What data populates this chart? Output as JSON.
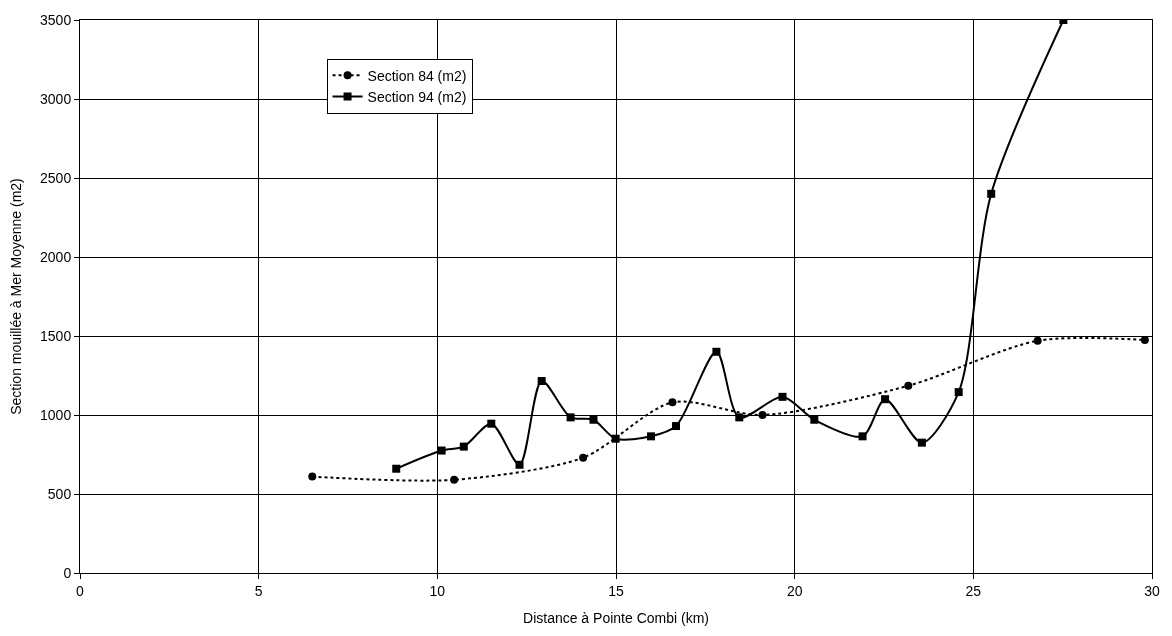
{
  "chart_data": {
    "type": "line",
    "xlabel": "Distance à Pointe Combi (km)",
    "ylabel": "Section mouillée à Mer Moyenne (m2)",
    "xlim": [
      0,
      30
    ],
    "xticks": [
      0,
      5,
      10,
      15,
      20,
      25,
      30
    ],
    "ylim": [
      0,
      3500
    ],
    "yticks": [
      0,
      500,
      1000,
      1500,
      2000,
      2500,
      3000,
      3500
    ],
    "grid": true,
    "legend": "top left",
    "series": [
      {
        "name": "Section 84 (m2)",
        "color": "#000000",
        "marker": "circle",
        "line_style": "dotted",
        "x": [
          6.5,
          10.47,
          14.08,
          16.58,
          19.1,
          23.18,
          26.8,
          29.8
        ],
        "values": [
          610,
          590,
          730,
          1080,
          1000,
          1185,
          1470,
          1475
        ]
      },
      {
        "name": "Section 94 (m2)",
        "color": "#000000",
        "marker": "square",
        "line_style": "solid",
        "x": [
          8.85,
          10.12,
          10.74,
          11.51,
          12.3,
          12.92,
          13.73,
          14.37,
          14.99,
          15.98,
          16.68,
          17.81,
          18.45,
          19.66,
          20.55,
          21.9,
          22.53,
          23.56,
          24.59,
          25.5,
          27.52
        ],
        "values": [
          660,
          775,
          800,
          945,
          685,
          1215,
          985,
          970,
          850,
          865,
          930,
          1400,
          985,
          1115,
          970,
          865,
          1100,
          825,
          1145,
          2400,
          3500
        ]
      }
    ]
  }
}
